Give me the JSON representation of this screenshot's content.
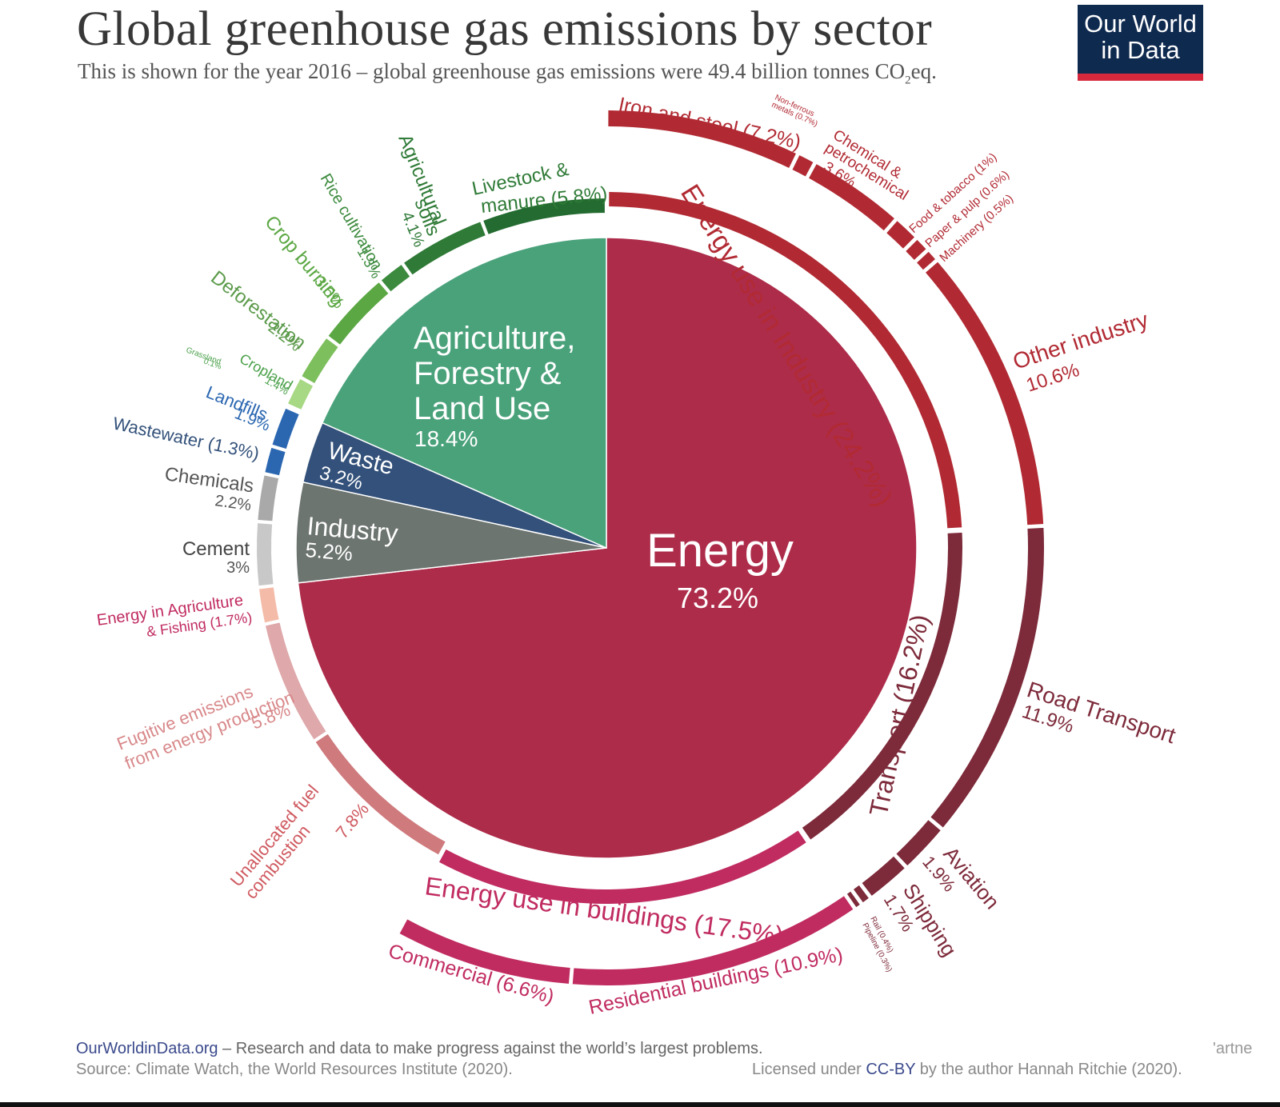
{
  "title": "Global greenhouse gas emissions by sector",
  "subtitle_main": "This is shown for the year 2016 – global greenhouse gas emissions were 49.4 billion tonnes CO",
  "subtitle_sub": "2",
  "subtitle_end": "eq.",
  "logo": {
    "line1": "Our World",
    "line2": "in Data",
    "bg": "#0f2a4f",
    "accent": "#d6283c"
  },
  "footer": {
    "site": "OurWorldinData.org",
    "tagline": " – Research and data to make progress against the world’s largest problems.",
    "source": "Source: Climate Watch, the World Resources Institute (2020).",
    "license_pre": "Licensed under ",
    "license_link": "CC-BY",
    "license_post": " by the author Hannah Ritchie  (2020).",
    "edge_text": "'artne"
  },
  "chart_data": {
    "type": "pie",
    "unit": "% of global greenhouse gas emissions",
    "sectors": [
      {
        "label": "Energy",
        "value": 73.2,
        "display": "73.2%",
        "color": "#ad2c4a"
      },
      {
        "label": "Industry",
        "value": 5.2,
        "display": "5.2%",
        "color": "#6d7570"
      },
      {
        "label": "Waste",
        "value": 3.2,
        "display": "3.2%",
        "color": "#33517a"
      },
      {
        "label": "Agriculture, Forestry & Land Use",
        "value": 18.4,
        "display": "18.4%",
        "color": "#4aa27b"
      }
    ],
    "energy_breakdown": [
      {
        "label": "Energy use in Industry",
        "value": 24.2,
        "display": "(24.2%)",
        "color": "#b12a33"
      },
      {
        "label": "Transport",
        "value": 16.2,
        "display": "(16.2%)",
        "color": "#7d2a3a"
      },
      {
        "label": "Energy use in buildings",
        "value": 17.5,
        "display": "(17.5%)",
        "color": "#c02b60"
      }
    ],
    "subsectors": [
      {
        "label": "Iron and steel",
        "value": 7.2,
        "display": "(7.2%)",
        "color": "#b12a33"
      },
      {
        "label": "Non-ferrous metals",
        "value": 0.7,
        "display": "(0.7%)",
        "color": "#b12a33"
      },
      {
        "label": "Chemical & petrochemical",
        "value": 3.6,
        "display": "3.6%",
        "color": "#b12a33"
      },
      {
        "label": "Food & tobacco",
        "value": 1.0,
        "display": "(1%)",
        "color": "#b12a33"
      },
      {
        "label": "Paper & pulp",
        "value": 0.6,
        "display": "(0.6%)",
        "color": "#b12a33"
      },
      {
        "label": "Machinery",
        "value": 0.5,
        "display": "(0.5%)",
        "color": "#b12a33"
      },
      {
        "label": "Other industry",
        "value": 10.6,
        "display": "10.6%",
        "color": "#b12a33"
      },
      {
        "label": "Road Transport",
        "value": 11.9,
        "display": "11.9%",
        "color": "#7d2a3a"
      },
      {
        "label": "Aviation",
        "value": 1.9,
        "display": "1.9%",
        "color": "#7d2a3a"
      },
      {
        "label": "Shipping",
        "value": 1.7,
        "display": "1.7%",
        "color": "#7d2a3a"
      },
      {
        "label": "Rail",
        "value": 0.4,
        "display": "(0.4%)",
        "color": "#7d2a3a"
      },
      {
        "label": "Pipeline",
        "value": 0.3,
        "display": "(0.3%)",
        "color": "#7d2a3a"
      },
      {
        "label": "Residential buildings",
        "value": 10.9,
        "display": "(10.9%)",
        "color": "#c02b60"
      },
      {
        "label": "Commercial",
        "value": 6.6,
        "display": "(6.6%)",
        "color": "#c02b60"
      },
      {
        "label": "Unallocated fuel combustion",
        "value": 7.8,
        "display": "7.8%",
        "color": "#cf7a7d"
      },
      {
        "label": "Fugitive emissions from energy production",
        "value": 5.8,
        "display": "5.8%",
        "color": "#dfa8aa"
      },
      {
        "label": "Energy in Agriculture & Fishing",
        "value": 1.7,
        "display": "(1.7%)",
        "color": "#f4bca8"
      },
      {
        "label": "Cement",
        "value": 3.0,
        "display": "3%",
        "color": "#c8c8c8"
      },
      {
        "label": "Chemicals",
        "value": 2.2,
        "display": "2.2%",
        "color": "#a9a9a9"
      },
      {
        "label": "Wastewater",
        "value": 1.3,
        "display": "(1.3%)",
        "color": "#2b67b1"
      },
      {
        "label": "Landfills",
        "value": 1.9,
        "display": "1.9%",
        "color": "#2b67b1"
      },
      {
        "label": "Grassland",
        "value": 0.1,
        "display": "0.1%",
        "color": "#a7d883"
      },
      {
        "label": "Cropland",
        "value": 1.4,
        "display": "1.4%",
        "color": "#a7d883"
      },
      {
        "label": "Deforestation",
        "value": 2.2,
        "display": "2.2%",
        "color": "#7dbf5c"
      },
      {
        "label": "Crop burning",
        "value": 3.5,
        "display": "3.5%",
        "color": "#5ba743"
      },
      {
        "label": "Rice cultivation",
        "value": 1.3,
        "display": "1.3%",
        "color": "#3b8a3d"
      },
      {
        "label": "Agricultural soils",
        "value": 4.1,
        "display": "4.1%",
        "color": "#2e7a36"
      },
      {
        "label": "Livestock & manure",
        "value": 5.8,
        "display": "(5.8%)",
        "color": "#236b30"
      }
    ]
  }
}
